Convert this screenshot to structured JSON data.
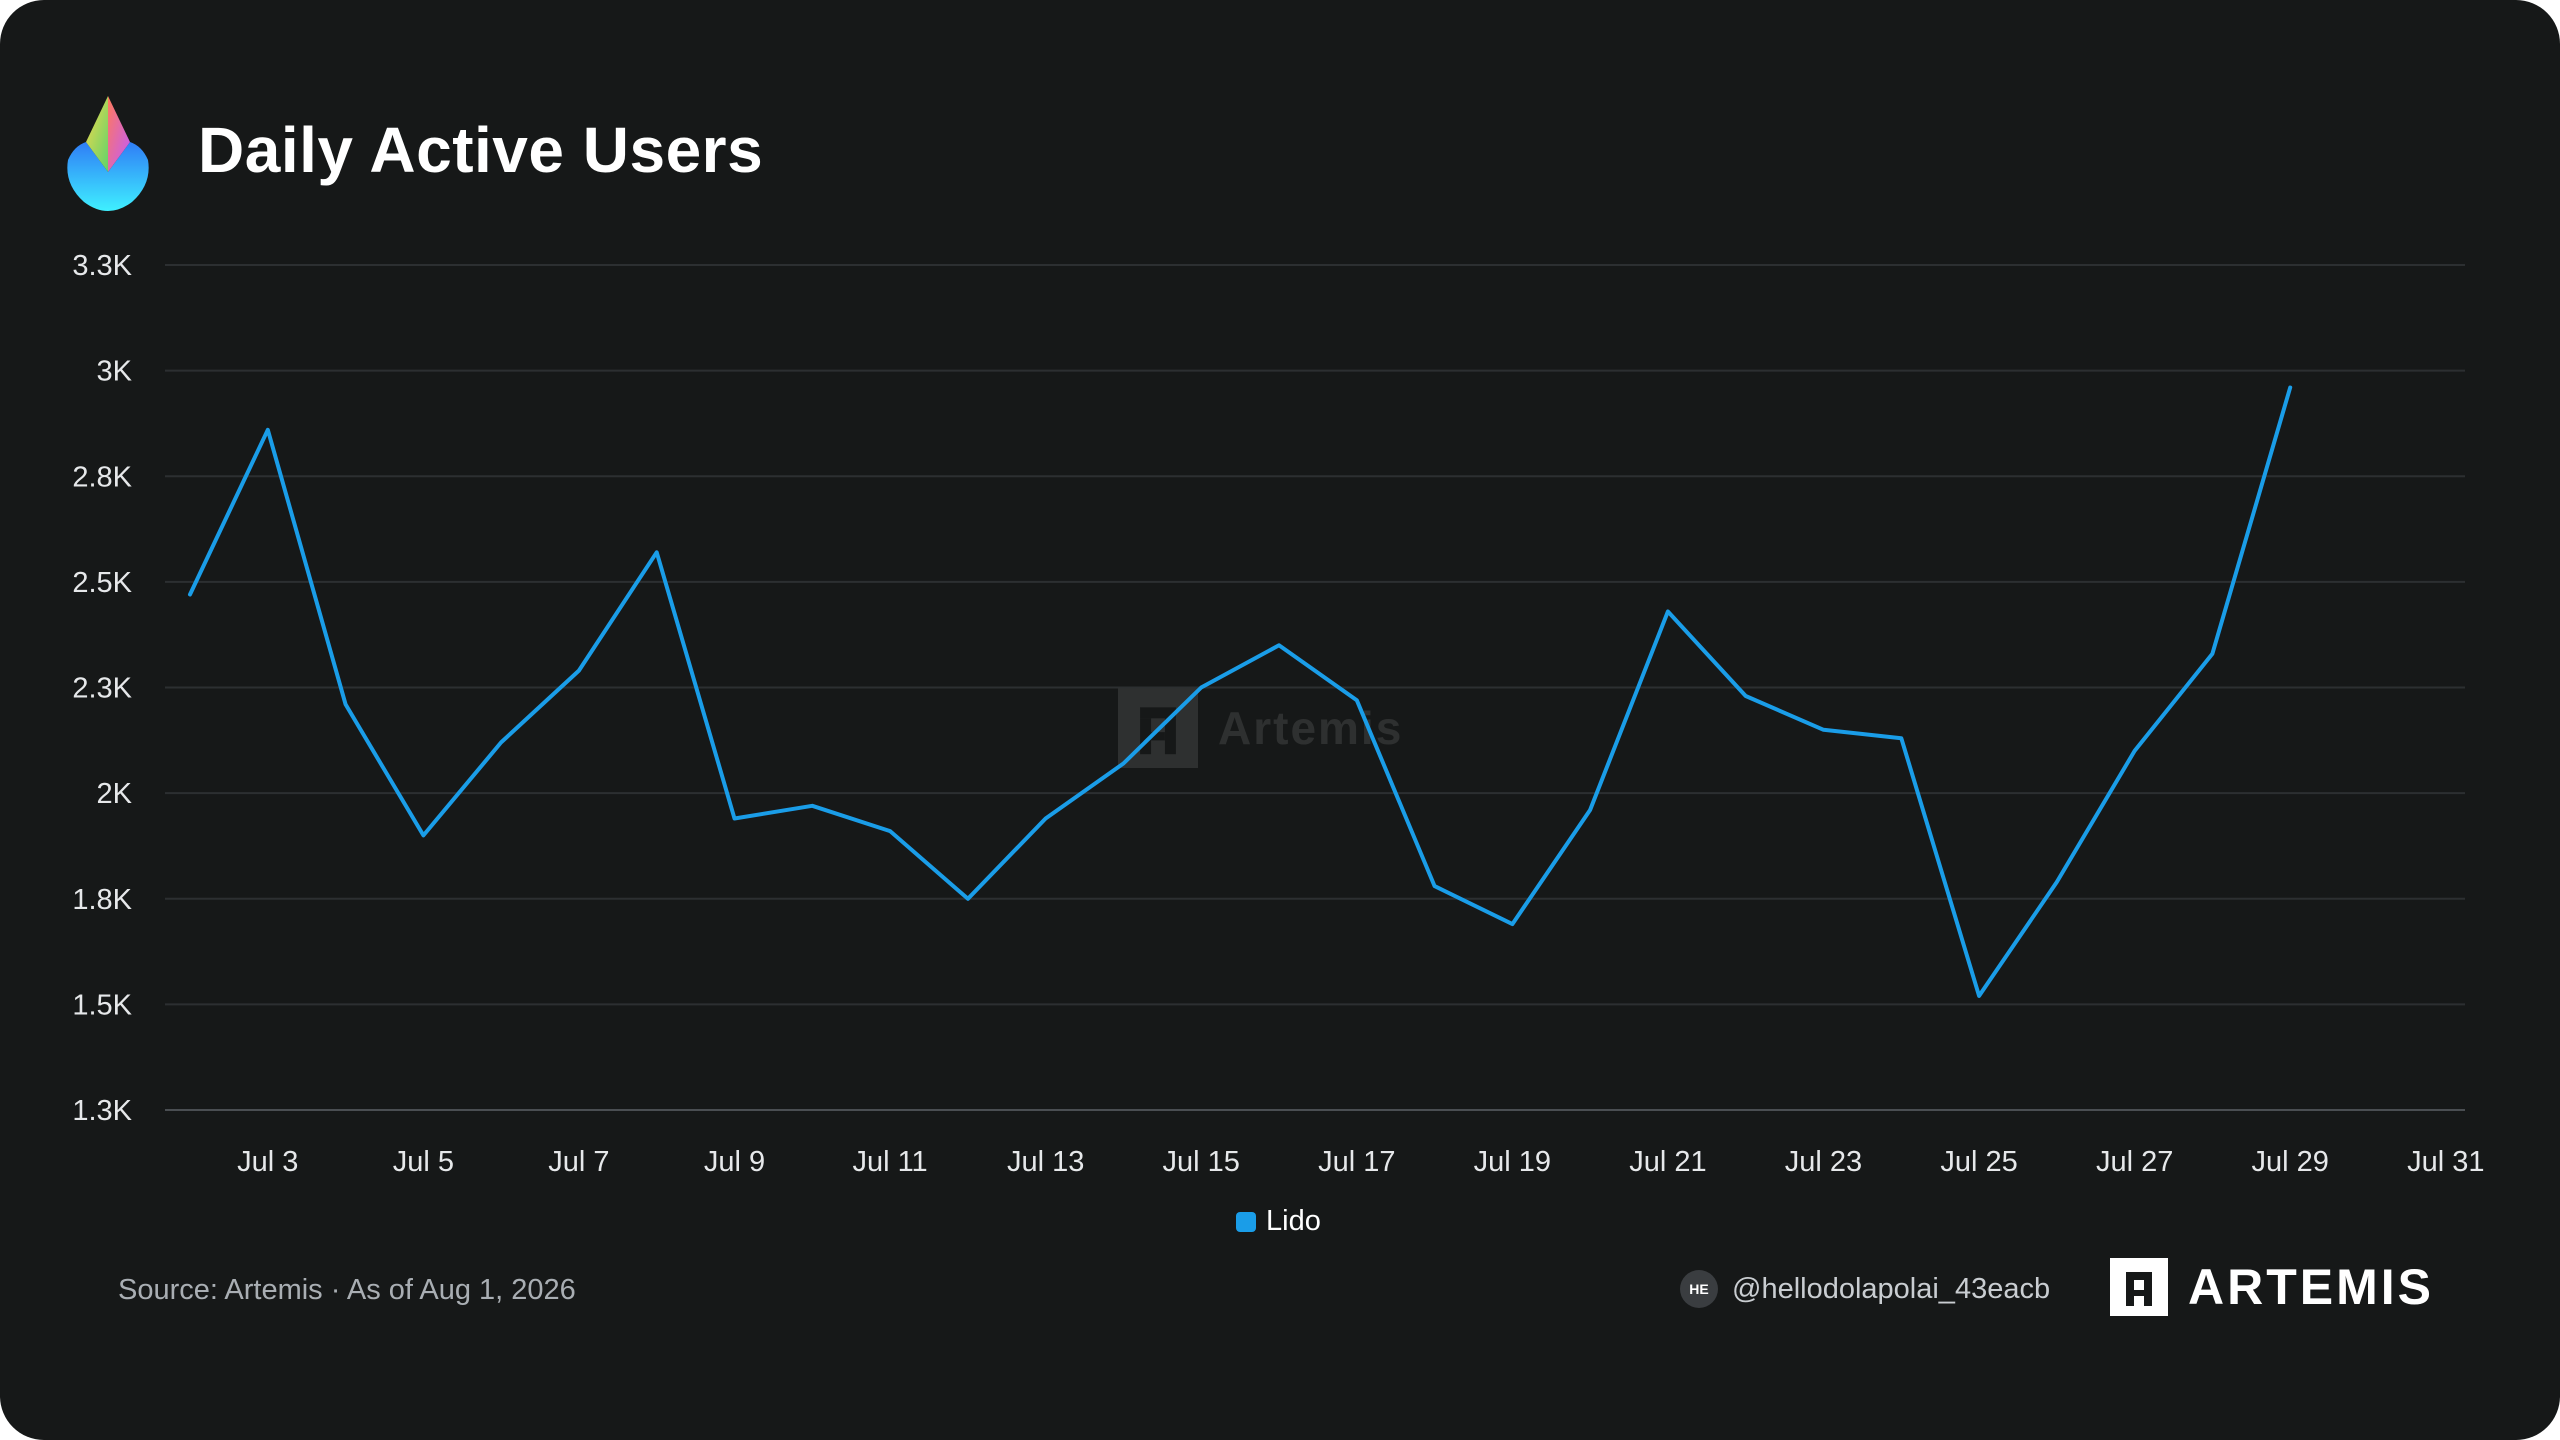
{
  "header": {
    "title": "Daily Active Users",
    "logo_icon": "lido-drop-icon"
  },
  "chart_data": {
    "type": "line",
    "title": "Daily Active Users",
    "xlabel": "",
    "ylabel": "",
    "x": [
      "Jul 2",
      "Jul 3",
      "Jul 4",
      "Jul 5",
      "Jul 6",
      "Jul 7",
      "Jul 8",
      "Jul 9",
      "Jul 10",
      "Jul 11",
      "Jul 12",
      "Jul 13",
      "Jul 14",
      "Jul 15",
      "Jul 16",
      "Jul 17",
      "Jul 18",
      "Jul 19",
      "Jul 20",
      "Jul 21",
      "Jul 22",
      "Jul 23",
      "Jul 24",
      "Jul 25",
      "Jul 26",
      "Jul 27",
      "Jul 28",
      "Jul 29"
    ],
    "series": [
      {
        "name": "Lido",
        "color": "#1a9de8",
        "values": [
          2470,
          2860,
          2210,
          1900,
          2120,
          2290,
          2570,
          1940,
          1970,
          1910,
          1750,
          1940,
          2070,
          2250,
          2350,
          2220,
          1780,
          1690,
          1960,
          2430,
          2230,
          2150,
          2130,
          1520,
          1790,
          2100,
          2330,
          2960
        ]
      }
    ],
    "x_ticks": [
      "Jul 3",
      "Jul 5",
      "Jul 7",
      "Jul 9",
      "Jul 11",
      "Jul 13",
      "Jul 15",
      "Jul 17",
      "Jul 19",
      "Jul 21",
      "Jul 23",
      "Jul 25",
      "Jul 27",
      "Jul 29",
      "Jul 31"
    ],
    "x_tick_days": [
      3,
      5,
      7,
      9,
      11,
      13,
      15,
      17,
      19,
      21,
      23,
      25,
      27,
      29,
      31
    ],
    "y_ticks": [
      {
        "value": 1250,
        "label": "1.3K"
      },
      {
        "value": 1500,
        "label": "1.5K"
      },
      {
        "value": 1750,
        "label": "1.8K"
      },
      {
        "value": 2000,
        "label": "2K"
      },
      {
        "value": 2250,
        "label": "2.3K"
      },
      {
        "value": 2500,
        "label": "2.5K"
      },
      {
        "value": 2750,
        "label": "2.8K"
      },
      {
        "value": 3000,
        "label": "3K"
      },
      {
        "value": 3250,
        "label": "3.3K"
      }
    ],
    "ylim": [
      1250,
      3250
    ],
    "grid": true,
    "legend_position": "bottom-center"
  },
  "legend": {
    "label": "Lido",
    "color": "#1a9de8"
  },
  "footer": {
    "source": "Source: Artemis · As of Aug 1, 2026",
    "handle_initials": "HE",
    "handle": "@hellodolapolai_43eacb",
    "brand": "ARTEMIS",
    "brand_icon": "artemis-logo-icon"
  },
  "watermark": {
    "text": "Artemis",
    "icon": "artemis-watermark-icon"
  }
}
